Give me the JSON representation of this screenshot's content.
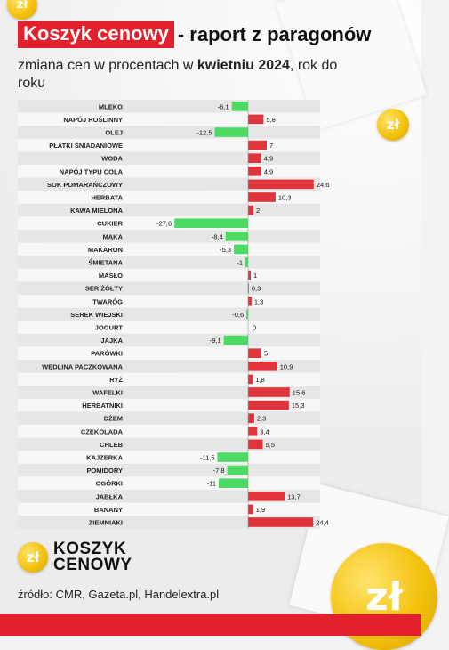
{
  "header": {
    "title_highlight": "Koszyk cenowy",
    "title_rest": "- raport z paragonów",
    "subtitle_pre": "zmiana cen w procentach w ",
    "subtitle_bold": "kwietniu 2024",
    "subtitle_post": ", rok do roku"
  },
  "chart_data": {
    "type": "bar",
    "orientation": "horizontal",
    "categories": [
      "MLEKO",
      "NAPÓJ ROŚLINNY",
      "OLEJ",
      "PŁATKI ŚNIADANIOWE",
      "WODA",
      "NAPÓJ TYPU COLA",
      "SOK POMARAŃCZOWY",
      "HERBATA",
      "KAWA MIELONA",
      "CUKIER",
      "MĄKA",
      "MAKARON",
      "ŚMIETANA",
      "MASŁO",
      "SER ŻÓŁTY",
      "TWARÓG",
      "SEREK WIEJSKI",
      "JOGURT",
      "JAJKA",
      "PARÓWKI",
      "WĘDLINA PACZKOWANA",
      "RYŻ",
      "WAFELKI",
      "HERBATNIKI",
      "DŻEM",
      "CZEKOLADA",
      "CHLEB",
      "KAJZERKA",
      "POMIDORY",
      "OGÓRKI",
      "JABŁKA",
      "BANANY",
      "ZIEMNIAKI"
    ],
    "values": [
      -6.1,
      5.8,
      -12.5,
      7,
      4.9,
      4.9,
      24.6,
      10.3,
      2,
      -27.6,
      -8.4,
      -5.3,
      -1,
      1,
      0.3,
      1.3,
      -0.6,
      0,
      -9.1,
      5,
      10.9,
      1.8,
      15.6,
      15.3,
      2.3,
      3.4,
      5.5,
      -11.5,
      -7.8,
      -11,
      13.7,
      1.9,
      24.4
    ],
    "value_labels": [
      "-6,1",
      "5,8",
      "-12,5",
      "7",
      "4,9",
      "4,9",
      "24,6",
      "10,3",
      "2",
      "-27,6",
      "-8,4",
      "-5,3",
      "-1",
      "1",
      "0,3",
      "1,3",
      "-0,6",
      "0",
      "-9,1",
      "5",
      "10,9",
      "1,8",
      "15,6",
      "15,3",
      "2,3",
      "3,4",
      "5,5",
      "-11,5",
      "-7,8",
      "-11",
      "13,7",
      "1,9",
      "24,4"
    ],
    "xlim": [
      -30,
      30
    ],
    "grid": false,
    "colors": {
      "positive": "#e0343c",
      "negative": "#4cd964",
      "row_even": "#e6e6e6",
      "row_odd": "#f7f7f7"
    }
  },
  "logo": {
    "line1": "KOSZYK",
    "line2": "CENOWY",
    "coin_symbol": "zł"
  },
  "source": "źródło: CMR, Gazeta.pl, Handelextra.pl",
  "decor": {
    "coin_symbol": "zł",
    "icon": "zloty-coin-icon"
  },
  "colors": {
    "brand_red": "#e3202e",
    "coin_gold": "#f4c20d"
  }
}
